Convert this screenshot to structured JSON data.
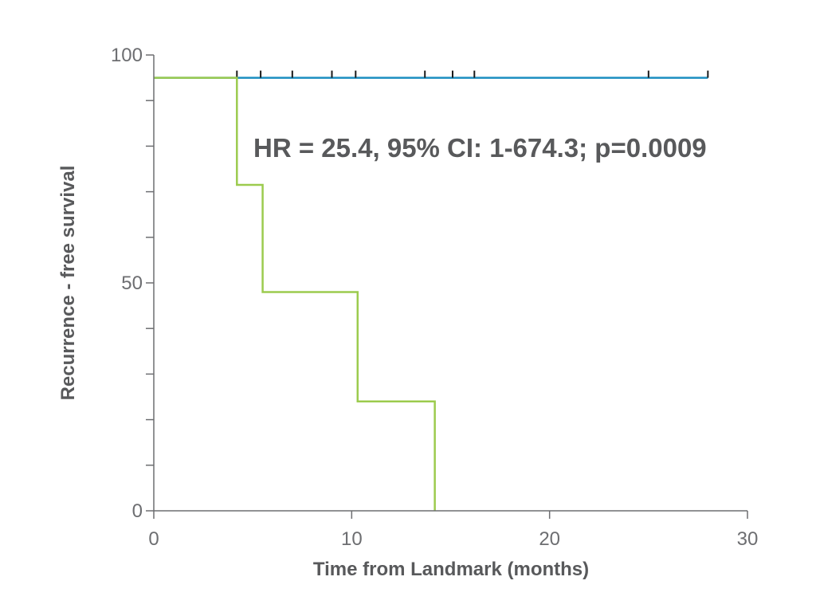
{
  "chart_data": {
    "type": "line",
    "subtype": "kaplan-meier",
    "title": "",
    "xlabel": "Time from Landmark (months)",
    "ylabel": "Recurrence - free survival",
    "xlim": [
      0,
      30
    ],
    "ylim": [
      0,
      100
    ],
    "xticks": [
      0,
      10,
      20,
      30
    ],
    "xtick_labels": [
      "0",
      "10",
      "20",
      "30"
    ],
    "yticks": [
      0,
      50,
      100
    ],
    "ytick_labels": [
      "0",
      "50",
      "100"
    ],
    "y_minor_tick_step": 10,
    "grid": false,
    "annotation": "HR = 25.4, 95% CI: 1-674.3; p=0.0009",
    "series": [
      {
        "color": "#1b8ec0",
        "steps": [
          [
            0,
            95
          ],
          [
            28.0,
            95
          ]
        ],
        "censor_times": [
          4.2,
          5.4,
          7.0,
          9.0,
          10.2,
          13.7,
          15.1,
          16.2,
          25.0,
          28.0
        ]
      },
      {
        "color": "#9ccb4e",
        "steps": [
          [
            0,
            95
          ],
          [
            4.2,
            71.5
          ],
          [
            5.5,
            48
          ],
          [
            10.3,
            24
          ],
          [
            14.2,
            0
          ]
        ]
      }
    ]
  }
}
